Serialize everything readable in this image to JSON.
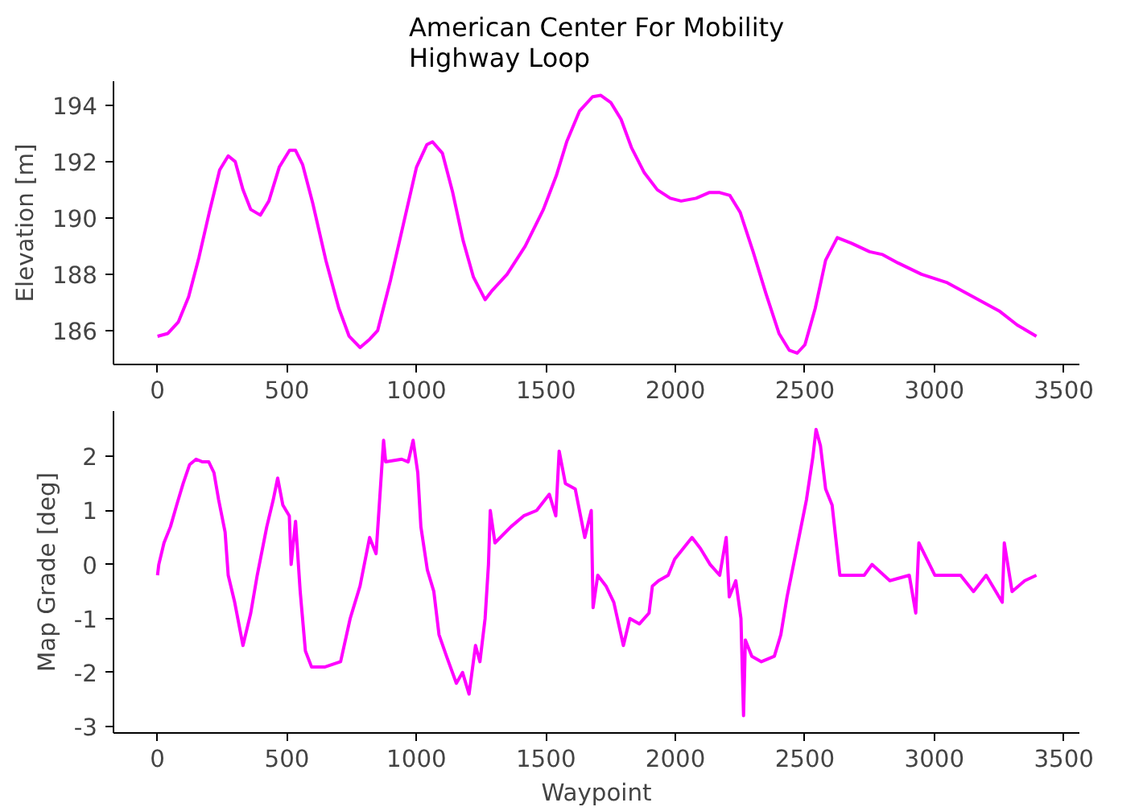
{
  "chart_data": [
    {
      "type": "line",
      "title": "American Center For Mobility\nHighway Loop",
      "ylabel": "Elevation [m]",
      "xlim": [
        -170,
        3560
      ],
      "xticks": [
        0,
        500,
        1000,
        1500,
        2000,
        2500,
        3000,
        3500
      ],
      "ylim": [
        184.8,
        194.85
      ],
      "yticks": [
        186,
        188,
        190,
        192,
        194
      ],
      "series": [
        {
          "color": "#ff00ff",
          "x": [
            0,
            40,
            80,
            120,
            160,
            200,
            240,
            273,
            300,
            330,
            360,
            397,
            430,
            470,
            510,
            533,
            560,
            600,
            650,
            700,
            740,
            782,
            820,
            850,
            900,
            950,
            1000,
            1040,
            1062,
            1100,
            1140,
            1180,
            1220,
            1265,
            1290,
            1350,
            1420,
            1490,
            1540,
            1580,
            1630,
            1680,
            1712,
            1750,
            1790,
            1830,
            1880,
            1930,
            1980,
            2022,
            2080,
            2130,
            2171,
            2210,
            2250,
            2300,
            2350,
            2400,
            2440,
            2470,
            2500,
            2540,
            2580,
            2625,
            2680,
            2750,
            2800,
            2860,
            2950,
            3050,
            3150,
            3250,
            3320,
            3394
          ],
          "values": [
            185.8,
            185.9,
            186.3,
            187.2,
            188.6,
            190.2,
            191.7,
            192.2,
            192.0,
            191.0,
            190.3,
            190.1,
            190.6,
            191.8,
            192.4,
            192.4,
            191.9,
            190.5,
            188.5,
            186.8,
            185.8,
            185.4,
            185.7,
            186.0,
            187.8,
            189.8,
            191.8,
            192.6,
            192.7,
            192.3,
            190.9,
            189.2,
            187.9,
            187.1,
            187.4,
            188.0,
            189.0,
            190.3,
            191.5,
            192.7,
            193.8,
            194.3,
            194.35,
            194.1,
            193.5,
            192.5,
            191.6,
            191.0,
            190.7,
            190.6,
            190.7,
            190.9,
            190.9,
            190.8,
            190.2,
            188.8,
            187.3,
            185.9,
            185.3,
            185.2,
            185.5,
            186.8,
            188.5,
            189.3,
            189.1,
            188.8,
            188.7,
            188.4,
            188.0,
            187.7,
            187.2,
            186.7,
            186.2,
            185.8
          ]
        }
      ]
    },
    {
      "type": "line",
      "xlabel": "Waypoint",
      "ylabel": "Map Grade [deg]",
      "xlim": [
        -170,
        3560
      ],
      "xticks": [
        0,
        500,
        1000,
        1500,
        2000,
        2500,
        3000,
        3500
      ],
      "ylim": [
        -3.12,
        2.84
      ],
      "yticks": [
        -3,
        -2,
        -1,
        0,
        1,
        2
      ],
      "series": [
        {
          "color": "#ff00ff",
          "x": [
            0,
            5,
            25,
            50,
            74,
            99,
            124,
            149,
            174,
            198,
            218,
            236,
            261,
            273,
            298,
            330,
            360,
            385,
            422,
            447,
            464,
            484,
            509,
            516,
            533,
            551,
            571,
            595,
            645,
            707,
            744,
            782,
            819,
            844,
            873,
            881,
            943,
            968,
            987,
            1005,
            1017,
            1042,
            1067,
            1087,
            1116,
            1154,
            1178,
            1203,
            1228,
            1245,
            1265,
            1278,
            1285,
            1303,
            1365,
            1414,
            1464,
            1513,
            1538,
            1551,
            1575,
            1613,
            1650,
            1675,
            1682,
            1700,
            1732,
            1762,
            1799,
            1824,
            1861,
            1898,
            1911,
            1935,
            1972,
            1997,
            2064,
            2096,
            2134,
            2171,
            2196,
            2208,
            2233,
            2253,
            2263,
            2270,
            2295,
            2332,
            2382,
            2407,
            2431,
            2456,
            2481,
            2506,
            2531,
            2543,
            2560,
            2580,
            2605,
            2635,
            2667,
            2729,
            2759,
            2828,
            2903,
            2928,
            2940,
            3002,
            3101,
            3151,
            3200,
            3262,
            3270,
            3300,
            3349,
            3394
          ],
          "values": [
            -0.2,
            0.0,
            0.4,
            0.7,
            1.1,
            1.5,
            1.85,
            1.95,
            1.9,
            1.9,
            1.7,
            1.2,
            0.6,
            -0.2,
            -0.7,
            -1.5,
            -0.9,
            -0.2,
            0.7,
            1.2,
            1.6,
            1.1,
            0.9,
            0.0,
            0.8,
            -0.5,
            -1.6,
            -1.9,
            -1.9,
            -1.8,
            -1.0,
            -0.4,
            0.5,
            0.2,
            2.3,
            1.9,
            1.95,
            1.9,
            2.3,
            1.7,
            0.7,
            -0.1,
            -0.5,
            -1.3,
            -1.7,
            -2.2,
            -2.0,
            -2.4,
            -1.5,
            -1.8,
            -1.0,
            0.0,
            1.0,
            0.4,
            0.7,
            0.9,
            1.0,
            1.3,
            0.9,
            2.1,
            1.5,
            1.4,
            0.5,
            1.0,
            -0.8,
            -0.2,
            -0.4,
            -0.7,
            -1.5,
            -1.0,
            -1.1,
            -0.9,
            -0.4,
            -0.3,
            -0.2,
            0.1,
            0.5,
            0.3,
            0.0,
            -0.2,
            0.5,
            -0.6,
            -0.3,
            -1.0,
            -2.8,
            -1.4,
            -1.7,
            -1.8,
            -1.7,
            -1.3,
            -0.6,
            0.0,
            0.6,
            1.2,
            2.0,
            2.5,
            2.2,
            1.4,
            1.1,
            -0.2,
            -0.2,
            -0.2,
            0.0,
            -0.3,
            -0.2,
            -0.9,
            0.4,
            -0.2,
            -0.2,
            -0.5,
            -0.2,
            -0.7,
            0.4,
            -0.5,
            -0.3,
            -0.2
          ]
        }
      ]
    }
  ]
}
